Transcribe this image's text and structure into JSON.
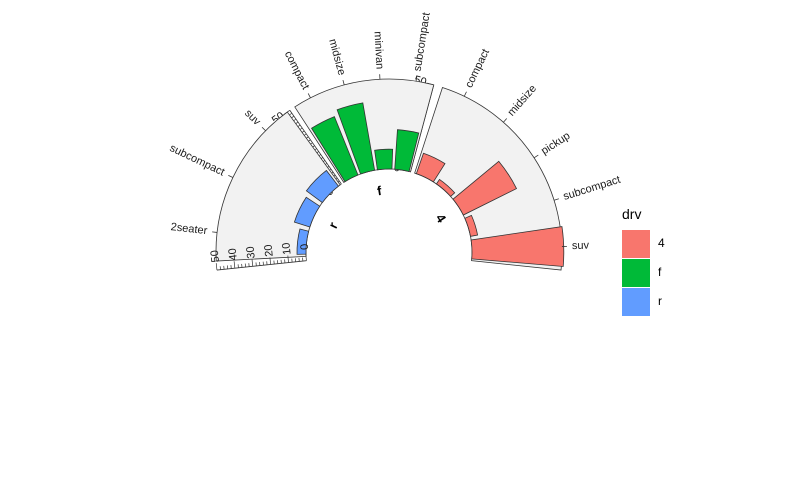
{
  "chart_data": {
    "type": "bar",
    "coord": "polar-grouped",
    "legend": {
      "title": "drv",
      "position": "right",
      "entries": [
        "4",
        "f",
        "r"
      ]
    },
    "colors": {
      "4": "#F8766D",
      "f": "#00BA38",
      "r": "#619CFF"
    },
    "panel_fill": "#F2F2F2",
    "ylim": [
      0,
      50
    ],
    "y_ticks": [
      0,
      10,
      20,
      30,
      40,
      50
    ],
    "groups": [
      {
        "name": "4",
        "categories": [
          "compact",
          "midsize",
          "pickup",
          "subcompact",
          "suv"
        ],
        "values": [
          12,
          3,
          33,
          4,
          51
        ]
      },
      {
        "name": "f",
        "categories": [
          "compact",
          "midsize",
          "minivan",
          "subcompact"
        ],
        "values": [
          35,
          38,
          11,
          22
        ]
      },
      {
        "name": "r",
        "categories": [
          "2seater",
          "subcompact",
          "suv"
        ],
        "values": [
          5,
          9,
          11
        ]
      }
    ]
  }
}
